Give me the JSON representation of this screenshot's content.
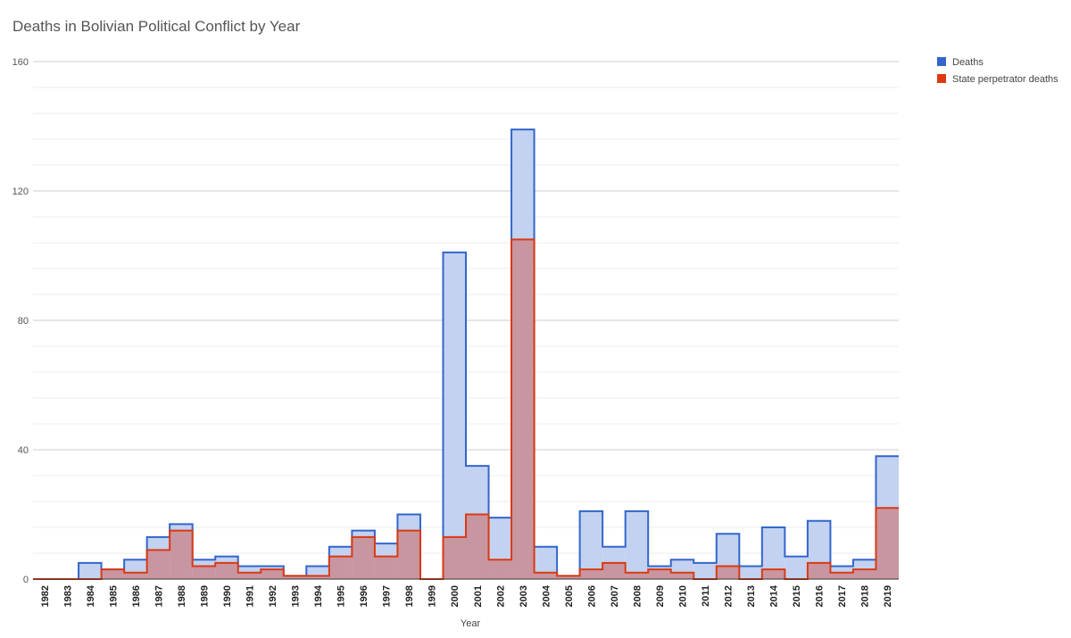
{
  "chart_data": {
    "type": "area",
    "step": true,
    "title": "Deaths in Bolivian Political Conflict by Year",
    "xlabel": "Year",
    "ylabel": "",
    "ylim": [
      0,
      160
    ],
    "yticks": [
      0,
      40,
      80,
      120,
      160
    ],
    "grid": true,
    "legend_position": "right",
    "categories": [
      "1982",
      "1983",
      "1984",
      "1985",
      "1986",
      "1987",
      "1988",
      "1989",
      "1990",
      "1991",
      "1992",
      "1993",
      "1994",
      "1995",
      "1996",
      "1997",
      "1998",
      "1999",
      "2000",
      "2001",
      "2002",
      "2003",
      "2004",
      "2005",
      "2006",
      "2007",
      "2008",
      "2009",
      "2010",
      "2011",
      "2012",
      "2013",
      "2014",
      "2015",
      "2016",
      "2017",
      "2018",
      "2019"
    ],
    "series": [
      {
        "name": "Deaths",
        "color": "#3366cc",
        "fill": "#c2d2f0",
        "values": [
          0,
          0,
          5,
          3,
          6,
          13,
          17,
          6,
          7,
          4,
          4,
          1,
          4,
          10,
          15,
          11,
          20,
          0,
          101,
          35,
          19,
          139,
          10,
          1,
          21,
          10,
          21,
          4,
          6,
          5,
          14,
          4,
          16,
          7,
          18,
          4,
          6,
          38
        ]
      },
      {
        "name": "State perpetrator deaths",
        "color": "#dc3912",
        "fill": "#c9909a",
        "values": [
          0,
          0,
          0,
          3,
          2,
          9,
          15,
          4,
          5,
          2,
          3,
          1,
          1,
          7,
          13,
          7,
          15,
          0,
          13,
          20,
          6,
          105,
          2,
          1,
          3,
          5,
          2,
          3,
          2,
          0,
          4,
          0,
          3,
          0,
          5,
          2,
          3,
          22
        ]
      }
    ]
  }
}
